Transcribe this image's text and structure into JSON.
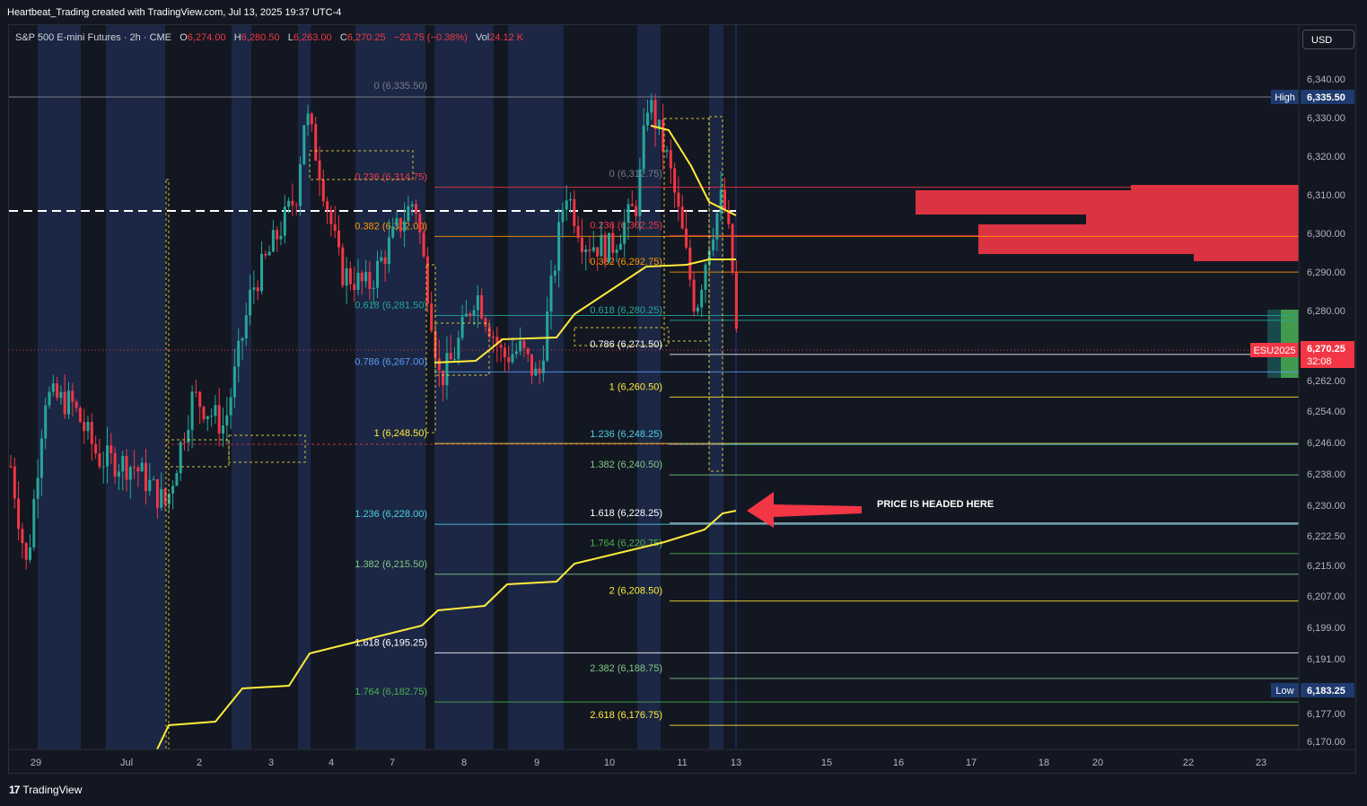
{
  "header": {
    "credit": "Heartbeat_Trading created with TradingView.com, Jul 13, 2025 19:37 UTC-4",
    "symbol": "S&P 500 E-mini Futures · 2h · CME",
    "open_label": "O",
    "open": "6,274.00",
    "high_label": "H",
    "high": "6,280.50",
    "low_label": "L",
    "low": "6,263.00",
    "close_label": "C",
    "close": "6,270.25",
    "change": "−23.75 (−0.38%)",
    "vol_label": "Vol",
    "volume": "24.12 K",
    "currency": "USD"
  },
  "footer": {
    "logo_mark": "17",
    "logo_text": "TradingView"
  },
  "colors": {
    "background": "#131722",
    "session_band": "#1b2744",
    "up": "#26a69a",
    "down": "#f23645",
    "vwap": "#ffeb3b",
    "volume_profile": "#f23645",
    "arrow": "#f23645"
  },
  "chart_data": {
    "type": "candlestick",
    "symbol": "ESU2025",
    "timeframe": "2h",
    "y_axis": {
      "ticks": [
        6340,
        6330,
        6320,
        6310,
        6300,
        6290,
        6280,
        6262,
        6254,
        6246,
        6238,
        6230,
        6222.5,
        6215,
        6207,
        6199,
        6191,
        6183.25,
        6177,
        6170
      ],
      "tick_labels": [
        "6,340.00",
        "6,330.00",
        "6,320.00",
        "6,310.00",
        "6,300.00",
        "6,290.00",
        "6,280.00",
        "6,262.00",
        "6,254.00",
        "6,246.00",
        "6,238.00",
        "6,230.00",
        "6,222.50",
        "6,215.00",
        "6,207.00",
        "6,199.00",
        "6,191.00",
        "6,183.25",
        "6,177.00",
        "6,170.00"
      ]
    },
    "x_axis": {
      "labels": [
        "29",
        "Jul",
        "2",
        "3",
        "4",
        "7",
        "8",
        "9",
        "10",
        "11",
        "13",
        "15",
        "16",
        "17",
        "18",
        "20",
        "22",
        "23"
      ]
    },
    "price_tags": {
      "high": {
        "label": "High",
        "value": "6,335.50"
      },
      "low": {
        "label": "Low",
        "value": "6,183.25"
      },
      "last": {
        "label": "ESU2025",
        "value": "6,270.25",
        "countdown": "32:08"
      }
    },
    "fib_levels": [
      {
        "text": "0 (6,335.50)",
        "price": 6335.5,
        "color": "#787b86"
      },
      {
        "text": "0.236 (6,314.75)",
        "price": 6314.75,
        "color": "#f23645"
      },
      {
        "text": "0.382 (6,302.00)",
        "price": 6302.0,
        "color": "#ff9800"
      },
      {
        "text": "0.618 (6,281.50)",
        "price": 6281.5,
        "color": "#26a69a"
      },
      {
        "text": "0.786 (6,267.00)",
        "price": 6267.0,
        "color": "#5b9cf6"
      },
      {
        "text": "1 (6,248.50)",
        "price": 6248.5,
        "color": "#ffeb3b"
      },
      {
        "text": "1.236 (6,228.00)",
        "price": 6228.0,
        "color": "#4dd0e1"
      },
      {
        "text": "1.382 (6,215.50)",
        "price": 6215.5,
        "color": "#81c784"
      },
      {
        "text": "1.618 (6,195.25)",
        "price": 6195.25,
        "color": "#ffffff"
      },
      {
        "text": "1.764 (6,182.75)",
        "price": 6182.75,
        "color": "#4caf50"
      },
      {
        "text": "0 (6,312.75)",
        "price": 6312.75,
        "color": "#787b86"
      },
      {
        "text": "0.236 (6,302.25)",
        "price": 6302.25,
        "color": "#f23645"
      },
      {
        "text": "0.382 (6,292.75)",
        "price": 6292.75,
        "color": "#ff9800"
      },
      {
        "text": "0.618 (6,280.25)",
        "price": 6280.25,
        "color": "#26a69a"
      },
      {
        "text": "0.786 (6,271.50)",
        "price": 6271.5,
        "color": "#ffffff"
      },
      {
        "text": "1 (6,260.50)",
        "price": 6260.5,
        "color": "#ffeb3b"
      },
      {
        "text": "1.236 (6,248.25)",
        "price": 6248.25,
        "color": "#4dd0e1"
      },
      {
        "text": "1.382 (6,240.50)",
        "price": 6240.5,
        "color": "#81c784"
      },
      {
        "text": "1.618 (6,228.25)",
        "price": 6228.25,
        "color": "#ffffff"
      },
      {
        "text": "1.764 (6,220.75)",
        "price": 6220.75,
        "color": "#4caf50"
      },
      {
        "text": "2 (6,208.50)",
        "price": 6208.5,
        "color": "#ffeb3b"
      },
      {
        "text": "2.382 (6,188.75)",
        "price": 6188.75,
        "color": "#81c784"
      },
      {
        "text": "2.618 (6,176.75)",
        "price": 6176.75,
        "color": "#ffeb3b"
      }
    ],
    "annotation": {
      "text": "PRICE IS HEADED HERE",
      "target_price": 6228.25
    },
    "current_price": 6270.25,
    "high": 6335.5,
    "low": 6183.25,
    "grid": false,
    "legend": "none"
  }
}
